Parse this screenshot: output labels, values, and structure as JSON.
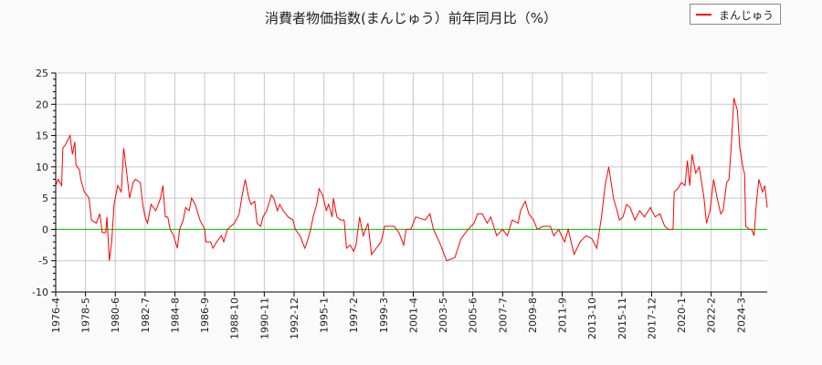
{
  "chart_data": {
    "type": "line",
    "title": "消費者物価指数(まんじゅう）前年同月比（%）",
    "xlabel": "",
    "ylabel": "",
    "ylim": [
      -10,
      25
    ],
    "yticks": [
      -10,
      -5,
      0,
      5,
      10,
      15,
      20,
      25
    ],
    "xlim": [
      "1976-4",
      "2026-1"
    ],
    "xticks": [
      "1976-4",
      "1978-5",
      "1980-6",
      "1982-7",
      "1984-8",
      "1986-9",
      "1988-10",
      "1990-11",
      "1992-12",
      "1995-1",
      "1997-2",
      "1999-3",
      "2001-4",
      "2003-5",
      "2005-6",
      "2007-7",
      "2009-8",
      "2011-9",
      "2013-10",
      "2015-11",
      "2017-12",
      "2020-1",
      "2022-2",
      "2024-3"
    ],
    "grid": true,
    "legend_position": "top-right",
    "zero_line_color": "#00cc00",
    "series": [
      {
        "name": "まんじゅう",
        "color": "#ff0000",
        "x": [
          "1976-4",
          "1976-6",
          "1976-9",
          "1976-10",
          "1976-12",
          "1977-4",
          "1977-6",
          "1977-8",
          "1977-9",
          "1977-12",
          "1978-1",
          "1978-4",
          "1978-8",
          "1978-10",
          "1979-2",
          "1979-5",
          "1979-7",
          "1979-10",
          "1979-11",
          "1980-1",
          "1980-3",
          "1980-5",
          "1980-8",
          "1980-11",
          "1981-1",
          "1981-3",
          "1981-6",
          "1981-9",
          "1981-11",
          "1982-3",
          "1982-5",
          "1982-7",
          "1982-9",
          "1982-12",
          "1983-4",
          "1983-8",
          "1983-10",
          "1983-12",
          "1984-2",
          "1984-4",
          "1984-7",
          "1984-10",
          "1984-12",
          "1985-3",
          "1985-5",
          "1985-8",
          "1985-10",
          "1986-1",
          "1986-5",
          "1986-9",
          "1986-10",
          "1987-2",
          "1987-4",
          "1987-7",
          "1987-11",
          "1988-1",
          "1988-4",
          "1988-7",
          "1988-10",
          "1989-2",
          "1989-4",
          "1989-7",
          "1989-10",
          "1989-12",
          "1990-3",
          "1990-5",
          "1990-8",
          "1990-10",
          "1991-1",
          "1991-5",
          "1991-7",
          "1991-10",
          "1991-12",
          "1992-3",
          "1992-7",
          "1992-11",
          "1993-1",
          "1993-5",
          "1993-9",
          "1993-11",
          "1994-2",
          "1994-4",
          "1994-7",
          "1994-9",
          "1994-12",
          "1995-3",
          "1995-5",
          "1995-8",
          "1995-9",
          "1995-12",
          "1996-3",
          "1996-6",
          "1996-8",
          "1996-11",
          "1997-2",
          "1997-4",
          "1997-7",
          "1997-10",
          "1998-2",
          "1998-5",
          "1998-9",
          "1999-1",
          "1999-4",
          "1999-8",
          "1999-12",
          "2000-4",
          "2000-8",
          "2000-10",
          "2001-2",
          "2001-6",
          "2002-2",
          "2002-6",
          "2002-9",
          "2003-3",
          "2003-8",
          "2004-3",
          "2004-8",
          "2005-2",
          "2005-7",
          "2005-10",
          "2006-2",
          "2006-6",
          "2006-9",
          "2007-2",
          "2007-7",
          "2007-11",
          "2008-3",
          "2008-8",
          "2008-10",
          "2009-2",
          "2009-5",
          "2009-9",
          "2009-12",
          "2010-5",
          "2010-11",
          "2011-2",
          "2011-6",
          "2011-11",
          "2012-2",
          "2012-7",
          "2012-12",
          "2013-5",
          "2013-10",
          "2014-2",
          "2014-6",
          "2014-9",
          "2014-12",
          "2015-4",
          "2015-7",
          "2015-9",
          "2015-12",
          "2016-3",
          "2016-6",
          "2016-10",
          "2017-2",
          "2017-6",
          "2017-11",
          "2018-3",
          "2018-7",
          "2018-11",
          "2019-2",
          "2019-6",
          "2019-7",
          "2019-10",
          "2020-1",
          "2020-4",
          "2020-6",
          "2020-8",
          "2020-10",
          "2021-1",
          "2021-4",
          "2021-8",
          "2021-10",
          "2022-1",
          "2022-4",
          "2022-7",
          "2022-10",
          "2022-12",
          "2023-3",
          "2023-5",
          "2023-7",
          "2023-9",
          "2023-12",
          "2024-2",
          "2024-5",
          "2024-6",
          "2024-7",
          "2024-10",
          "2024-12",
          "2025-2",
          "2025-4",
          "2025-6",
          "2025-9",
          "2025-11",
          "2026-1"
        ],
        "y": [
          7,
          8,
          7,
          13,
          13.5,
          15,
          12,
          14,
          10.3,
          9.5,
          8,
          6,
          5,
          1.5,
          1,
          2.5,
          -0.5,
          -0.5,
          2,
          -5,
          -2,
          4,
          7,
          6,
          13,
          10,
          5,
          7.5,
          8,
          7.5,
          4,
          2,
          1,
          4,
          3,
          5,
          7,
          2,
          2,
          0,
          -1,
          -3,
          0,
          1.5,
          3.5,
          3,
          5,
          4,
          1.5,
          0,
          -2,
          -2,
          -3,
          -2,
          -1,
          -2,
          0,
          0.5,
          1,
          2.5,
          5,
          8,
          5,
          4,
          4.5,
          1,
          0.5,
          2,
          3,
          5.5,
          5,
          3,
          4,
          3,
          2,
          1.5,
          0,
          -1,
          -3,
          -2,
          0,
          2,
          4,
          6.5,
          5.5,
          3,
          4,
          2,
          5,
          2,
          1.5,
          1.5,
          -3,
          -2.5,
          -3.5,
          -2.5,
          2,
          -1,
          1,
          -4,
          -3,
          -2,
          0.5,
          0.5,
          0.5,
          -0.5,
          -2.5,
          0,
          0,
          2,
          1.5,
          2.5,
          0,
          -2.5,
          -5,
          -4.5,
          -1.5,
          0,
          1,
          2.5,
          2.5,
          1,
          2,
          -1,
          0,
          -1,
          1.5,
          1,
          3,
          4.5,
          2.5,
          1.5,
          0,
          0.5,
          0.5,
          -1,
          0,
          -2,
          0,
          -4,
          -2,
          -1,
          -1.5,
          -3,
          2,
          7,
          10,
          5,
          3,
          1.5,
          2,
          4,
          3.5,
          1.5,
          3,
          2,
          3.5,
          2,
          2.5,
          0.5,
          0,
          0,
          6,
          6.5,
          7.5,
          7,
          11,
          7,
          12,
          9,
          10,
          5,
          1,
          3,
          8,
          5,
          2.5,
          3,
          7.5,
          8,
          14,
          21,
          19,
          13,
          9.5,
          9,
          0.5,
          0,
          0,
          -1,
          4.5,
          8,
          6,
          7,
          3.5
        ]
      }
    ]
  }
}
